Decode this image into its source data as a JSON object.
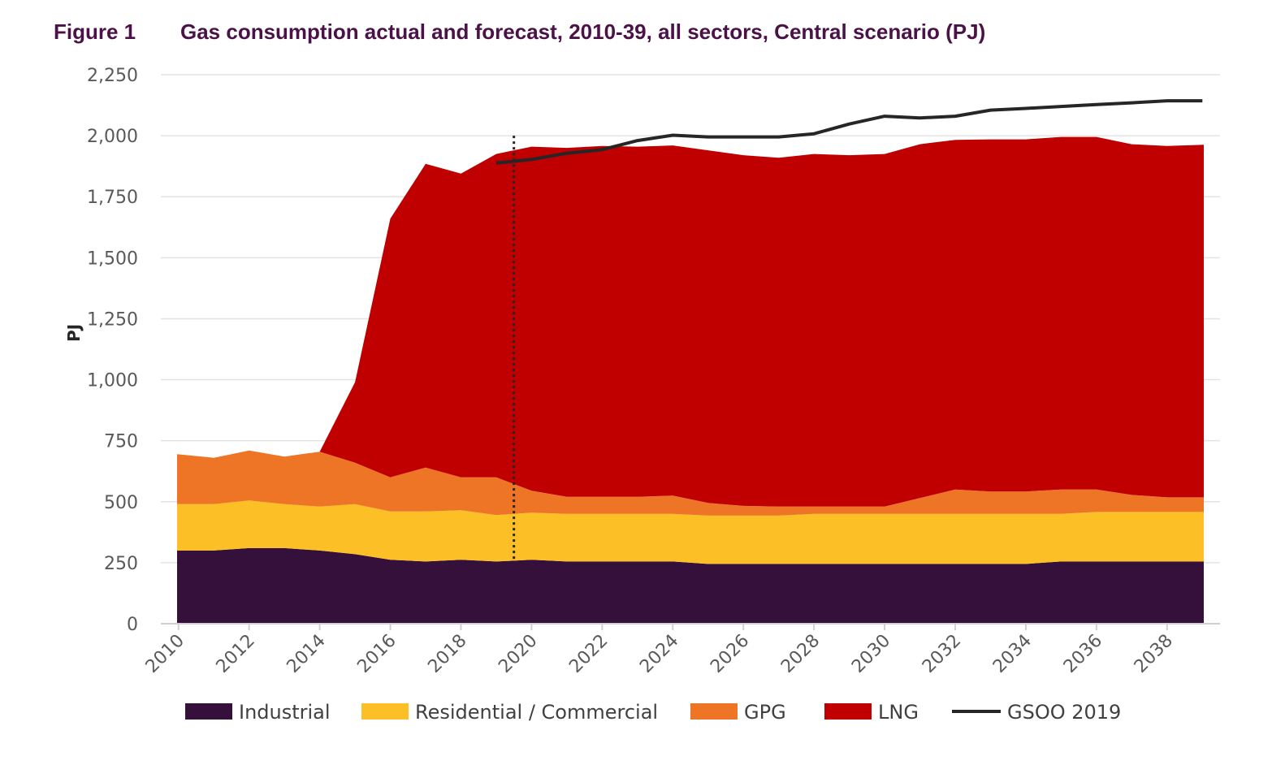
{
  "figure": {
    "number": "Figure 1",
    "title": "Gas consumption actual and forecast, 2010-39, all sectors, Central scenario (PJ)"
  },
  "chart_data": {
    "type": "area",
    "stacked": true,
    "title": "Gas consumption actual and forecast, 2010-39, all sectors, Central scenario (PJ)",
    "xlabel": "",
    "ylabel": "PJ",
    "ylim": [
      0,
      2250
    ],
    "yticks": [
      0,
      250,
      500,
      750,
      1000,
      1250,
      1500,
      1750,
      2000,
      2250
    ],
    "ytick_labels": [
      "0",
      "250",
      "500",
      "750",
      "1,000",
      "1,250",
      "1,500",
      "1,750",
      "2,000",
      "2,250"
    ],
    "x": [
      2010,
      2011,
      2012,
      2013,
      2014,
      2015,
      2016,
      2017,
      2018,
      2019,
      2020,
      2021,
      2022,
      2023,
      2024,
      2025,
      2026,
      2027,
      2028,
      2029,
      2030,
      2031,
      2032,
      2033,
      2034,
      2035,
      2036,
      2037,
      2038,
      2039
    ],
    "xtick_labels": [
      "2010",
      "2012",
      "2014",
      "2016",
      "2018",
      "2020",
      "2022",
      "2024",
      "2026",
      "2028",
      "2030",
      "2032",
      "2034",
      "2036",
      "2038"
    ],
    "forecast_start_marker": 2020,
    "grid": "horizontal",
    "legend_position": "bottom",
    "series": [
      {
        "name": "Industrial",
        "color": "#35103a",
        "values": [
          300,
          300,
          310,
          310,
          300,
          285,
          262,
          255,
          262,
          255,
          262,
          255,
          255,
          255,
          255,
          245,
          245,
          245,
          245,
          245,
          245,
          245,
          245,
          245,
          245,
          255,
          255,
          255,
          255,
          255
        ]
      },
      {
        "name": "Residential / Commercial",
        "color": "#fcbf26",
        "values": [
          190,
          190,
          195,
          180,
          180,
          205,
          198,
          205,
          203,
          190,
          193,
          195,
          195,
          195,
          195,
          198,
          198,
          198,
          205,
          205,
          205,
          205,
          205,
          205,
          205,
          195,
          203,
          203,
          203,
          203
        ]
      },
      {
        "name": "GPG",
        "color": "#ef7526",
        "values": [
          205,
          190,
          205,
          195,
          225,
          170,
          140,
          180,
          135,
          155,
          90,
          70,
          70,
          70,
          75,
          52,
          40,
          37,
          30,
          30,
          30,
          65,
          100,
          92,
          92,
          100,
          92,
          70,
          60,
          60
        ]
      },
      {
        "name": "LNG",
        "color": "#c00000",
        "values": [
          0,
          0,
          0,
          0,
          0,
          330,
          1060,
          1245,
          1245,
          1325,
          1410,
          1430,
          1438,
          1435,
          1435,
          1445,
          1437,
          1430,
          1445,
          1440,
          1445,
          1450,
          1433,
          1443,
          1443,
          1445,
          1445,
          1437,
          1440,
          1445
        ]
      }
    ],
    "line_series": [
      {
        "name": "GSOO 2019",
        "color": "#262626",
        "x": [
          2019,
          2020,
          2021,
          2022,
          2023,
          2024,
          2025,
          2026,
          2027,
          2028,
          2029,
          2030,
          2031,
          2032,
          2033,
          2034,
          2035,
          2036,
          2037,
          2038,
          2039
        ],
        "values": [
          1888,
          1903,
          1928,
          1943,
          1980,
          2002,
          1995,
          1995,
          1995,
          2008,
          2048,
          2080,
          2073,
          2080,
          2105,
          2112,
          2120,
          2128,
          2135,
          2143,
          2143
        ]
      }
    ]
  }
}
